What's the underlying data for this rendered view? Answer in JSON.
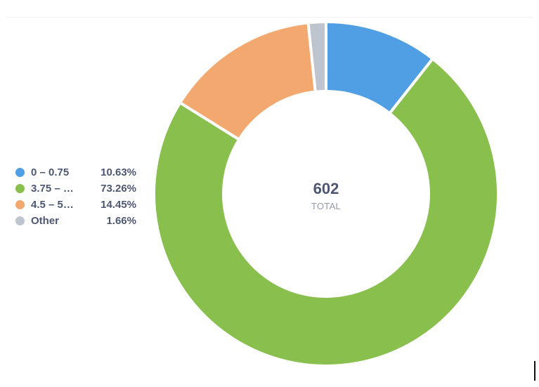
{
  "chart_data": {
    "type": "pie",
    "total_value": "602",
    "total_label": "TOTAL",
    "slices": [
      {
        "label": "0 – 0.75",
        "percent_text": "10.63%",
        "value": 10.63,
        "color": "#509EE3"
      },
      {
        "label": "3.75 – …",
        "percent_text": "73.26%",
        "value": 73.26,
        "color": "#88BF4D"
      },
      {
        "label": "4.5 – 5…",
        "percent_text": "14.45%",
        "value": 14.45,
        "color": "#F2A86F"
      },
      {
        "label": "Other",
        "percent_text": "1.66%",
        "value": 1.66,
        "color": "#BFC5CE"
      }
    ]
  }
}
